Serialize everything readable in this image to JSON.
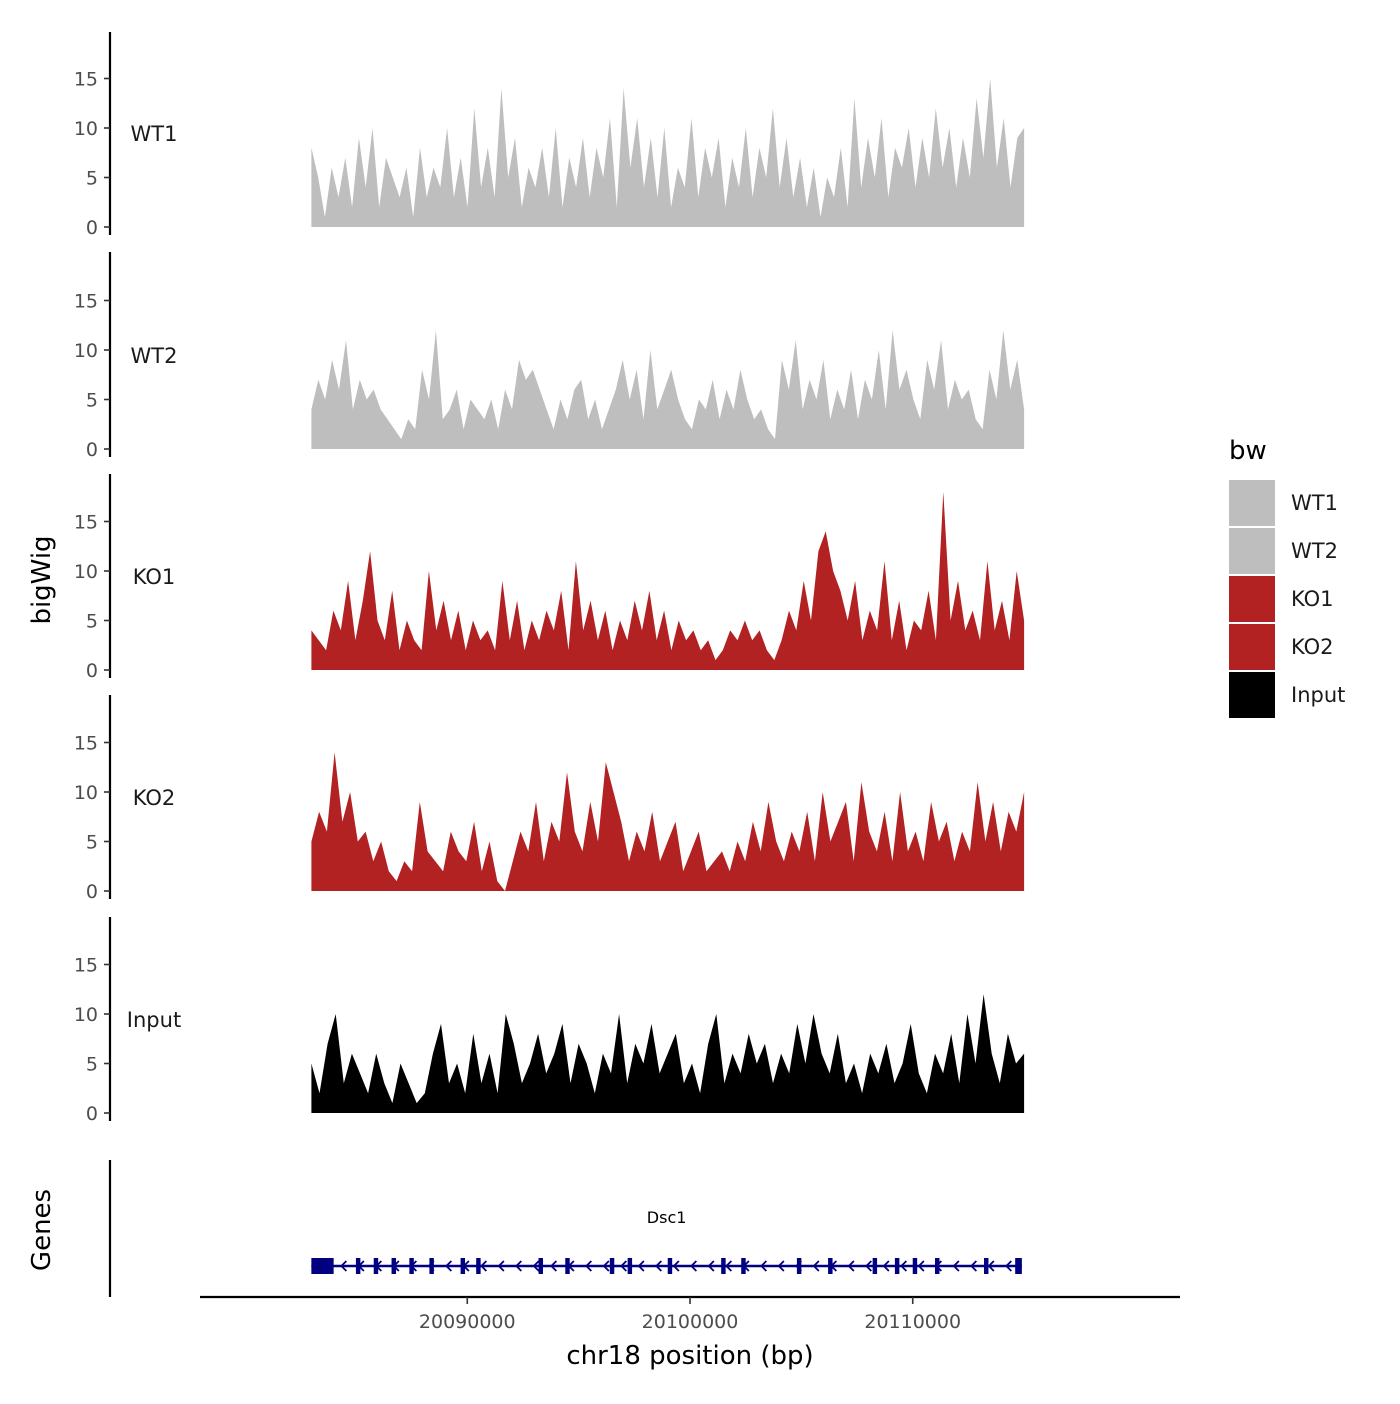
{
  "chart_data": {
    "type": "area",
    "ylabel": "bigWig",
    "xlabel": "chr18 position (bp)",
    "xlim": [
      20078000,
      20122000
    ],
    "data_range": [
      20083000,
      20115000
    ],
    "ylim": [
      0,
      20
    ],
    "yticks": [
      0,
      5,
      10,
      15
    ],
    "xticks": [
      20090000,
      20100000,
      20110000
    ],
    "xtick_labels": [
      "20090000",
      "20100000",
      "20110000"
    ],
    "legend": {
      "title": "bw",
      "position": "right",
      "entries": [
        {
          "label": "WT1",
          "color": "#bebebe"
        },
        {
          "label": "WT2",
          "color": "#bebebe"
        },
        {
          "label": "KO1",
          "color": "#b22222"
        },
        {
          "label": "KO2",
          "color": "#b22222"
        },
        {
          "label": "Input",
          "color": "#000000"
        }
      ]
    },
    "tracks": [
      {
        "name": "WT1",
        "color": "#bebebe",
        "values": [
          8,
          5,
          1,
          6,
          3,
          7,
          2,
          9,
          4,
          10,
          2,
          7,
          5,
          3,
          6,
          1,
          8,
          3,
          6,
          4,
          10,
          3,
          7,
          2,
          12,
          4,
          8,
          3,
          14,
          5,
          9,
          2,
          6,
          4,
          8,
          3,
          10,
          2,
          7,
          4,
          9,
          3,
          8,
          5,
          11,
          2,
          14,
          6,
          11,
          4,
          9,
          3,
          10,
          2,
          6,
          4,
          11,
          3,
          8,
          5,
          9,
          2,
          7,
          4,
          10,
          3,
          8,
          5,
          12,
          4,
          9,
          3,
          7,
          2,
          6,
          1,
          5,
          3,
          8,
          2,
          13,
          4,
          9,
          5,
          11,
          3,
          8,
          6,
          10,
          4,
          9,
          5,
          12,
          6,
          10,
          4,
          9,
          5,
          13,
          7,
          15,
          6,
          11,
          4,
          9,
          10
        ]
      },
      {
        "name": "WT2",
        "color": "#bebebe",
        "values": [
          4,
          7,
          5,
          9,
          6,
          11,
          4,
          7,
          5,
          6,
          4,
          3,
          2,
          1,
          3,
          2,
          8,
          5,
          12,
          3,
          4,
          6,
          2,
          5,
          4,
          3,
          5,
          2,
          6,
          4,
          9,
          7,
          8,
          6,
          4,
          2,
          5,
          3,
          6,
          7,
          3,
          5,
          2,
          4,
          6,
          9,
          5,
          8,
          3,
          10,
          4,
          6,
          8,
          5,
          3,
          2,
          5,
          4,
          7,
          3,
          6,
          4,
          8,
          5,
          3,
          4,
          2,
          1,
          9,
          6,
          11,
          4,
          7,
          5,
          9,
          3,
          6,
          4,
          8,
          3,
          7,
          5,
          10,
          4,
          12,
          6,
          8,
          5,
          3,
          9,
          6,
          11,
          4,
          7,
          5,
          6,
          3,
          2,
          8,
          5,
          12,
          6,
          9,
          4
        ]
      },
      {
        "name": "KO1",
        "color": "#b22222",
        "values": [
          4,
          3,
          2,
          6,
          4,
          9,
          3,
          7,
          12,
          5,
          3,
          8,
          2,
          5,
          3,
          2,
          10,
          4,
          7,
          3,
          6,
          2,
          5,
          3,
          4,
          2,
          9,
          3,
          7,
          2,
          5,
          3,
          6,
          4,
          8,
          2,
          11,
          4,
          7,
          3,
          6,
          2,
          5,
          3,
          7,
          4,
          8,
          3,
          6,
          2,
          5,
          3,
          4,
          2,
          3,
          1,
          2,
          4,
          3,
          5,
          3,
          4,
          2,
          1,
          3,
          6,
          4,
          9,
          5,
          12,
          14,
          10,
          8,
          5,
          9,
          3,
          6,
          4,
          11,
          3,
          7,
          2,
          5,
          4,
          8,
          3,
          18,
          5,
          9,
          4,
          6,
          3,
          11,
          4,
          7,
          3,
          10,
          5
        ]
      },
      {
        "name": "KO2",
        "color": "#b22222",
        "values": [
          5,
          8,
          6,
          14,
          7,
          10,
          5,
          6,
          3,
          5,
          2,
          1,
          3,
          2,
          9,
          4,
          3,
          2,
          6,
          4,
          3,
          7,
          2,
          5,
          1,
          0,
          3,
          6,
          4,
          9,
          3,
          7,
          5,
          12,
          6,
          4,
          9,
          5,
          13,
          10,
          7,
          3,
          6,
          4,
          8,
          3,
          5,
          7,
          2,
          4,
          6,
          2,
          3,
          4,
          2,
          5,
          3,
          7,
          4,
          9,
          5,
          3,
          6,
          4,
          8,
          3,
          10,
          5,
          7,
          9,
          3,
          11,
          6,
          4,
          8,
          3,
          10,
          4,
          6,
          3,
          9,
          5,
          7,
          3,
          6,
          4,
          11,
          5,
          9,
          4,
          8,
          6,
          10
        ]
      },
      {
        "name": "Input",
        "color": "#000000",
        "values": [
          5,
          2,
          7,
          10,
          3,
          6,
          4,
          2,
          6,
          3,
          1,
          5,
          3,
          1,
          2,
          6,
          9,
          3,
          5,
          2,
          8,
          3,
          6,
          2,
          10,
          7,
          3,
          5,
          8,
          4,
          6,
          9,
          3,
          7,
          5,
          2,
          6,
          4,
          10,
          3,
          7,
          5,
          9,
          4,
          6,
          8,
          3,
          5,
          2,
          7,
          10,
          3,
          6,
          4,
          8,
          5,
          7,
          3,
          6,
          4,
          9,
          5,
          10,
          6,
          4,
          8,
          3,
          5,
          2,
          6,
          4,
          7,
          3,
          5,
          9,
          4,
          2,
          6,
          4,
          8,
          3,
          10,
          5,
          12,
          6,
          3,
          8,
          5,
          6
        ]
      }
    ],
    "genes": [
      {
        "name": "Dsc1",
        "start": 20083000,
        "end": 20114900,
        "strand": "-",
        "exons": [
          [
            20083000,
            20084000
          ],
          [
            20085000,
            20085200
          ],
          [
            20085800,
            20086000
          ],
          [
            20086600,
            20086800
          ],
          [
            20087400,
            20087600
          ],
          [
            20088300,
            20088500
          ],
          [
            20089700,
            20089900
          ],
          [
            20090400,
            20090600
          ],
          [
            20093200,
            20093400
          ],
          [
            20094400,
            20094600
          ],
          [
            20096400,
            20096600
          ],
          [
            20097200,
            20097400
          ],
          [
            20099000,
            20099200
          ],
          [
            20101400,
            20101600
          ],
          [
            20102300,
            20102500
          ],
          [
            20104800,
            20105000
          ],
          [
            20106200,
            20106400
          ],
          [
            20108200,
            20108400
          ],
          [
            20109200,
            20109400
          ],
          [
            20110000,
            20110200
          ],
          [
            20111000,
            20111200
          ],
          [
            20113200,
            20113400
          ],
          [
            20114600,
            20114900
          ]
        ]
      }
    ],
    "panels": {
      "genes_title": "Genes"
    }
  }
}
